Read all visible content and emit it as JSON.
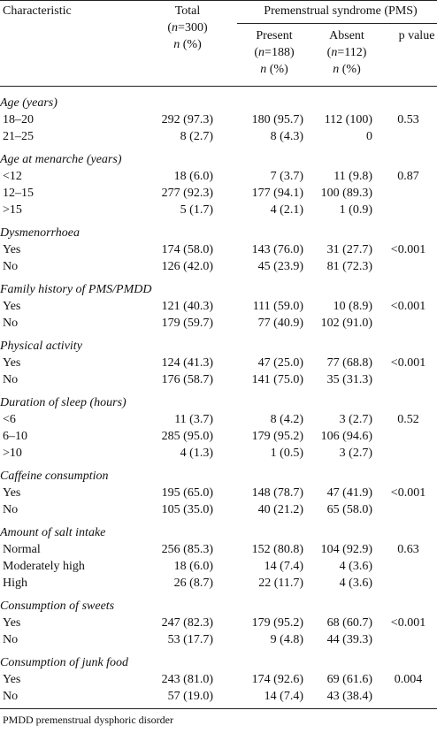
{
  "header": {
    "characteristic": "Characteristic",
    "total": "Total",
    "total_n": "(n=300)",
    "total_unit": "n (%)",
    "group": "Premenstrual syndrome (PMS)",
    "present": "Present",
    "present_n": "(n=188)",
    "present_unit": "n (%)",
    "absent": "Absent",
    "absent_n": "(n=112)",
    "absent_unit": "n (%)",
    "p_value": "p value"
  },
  "sections": [
    {
      "title": "Age (years)",
      "p": "0.53",
      "rows": [
        [
          "18–20",
          "292 (97.3)",
          "180 (95.7)",
          "112 (100)"
        ],
        [
          "21–25",
          "8 (2.7)",
          "8 (4.3)",
          "0"
        ]
      ]
    },
    {
      "title": "Age at menarche (years)",
      "p": "0.87",
      "rows": [
        [
          "<12",
          "18 (6.0)",
          "7 (3.7)",
          "11 (9.8)"
        ],
        [
          "12–15",
          "277 (92.3)",
          "177 (94.1)",
          "100 (89.3)"
        ],
        [
          ">15",
          "5 (1.7)",
          "4 (2.1)",
          "1 (0.9)"
        ]
      ]
    },
    {
      "title": "Dysmenorrhoea",
      "p": "<0.001",
      "rows": [
        [
          "Yes",
          "174 (58.0)",
          "143 (76.0)",
          "31 (27.7)"
        ],
        [
          "No",
          "126 (42.0)",
          "45 (23.9)",
          "81 (72.3)"
        ]
      ]
    },
    {
      "title": "Family history of PMS/PMDD",
      "p": "<0.001",
      "rows": [
        [
          "Yes",
          "121 (40.3)",
          "111 (59.0)",
          "10 (8.9)"
        ],
        [
          "No",
          "179 (59.7)",
          "77 (40.9)",
          "102 (91.0)"
        ]
      ]
    },
    {
      "title": "Physical activity",
      "p": "<0.001",
      "rows": [
        [
          "Yes",
          "124 (41.3)",
          "47 (25.0)",
          "77 (68.8)"
        ],
        [
          "No",
          "176 (58.7)",
          "141 (75.0)",
          "35 (31.3)"
        ]
      ]
    },
    {
      "title": "Duration of sleep (hours)",
      "p": "0.52",
      "rows": [
        [
          "<6",
          "11 (3.7)",
          "8 (4.2)",
          "3 (2.7)"
        ],
        [
          "6–10",
          "285 (95.0)",
          "179 (95.2)",
          "106 (94.6)"
        ],
        [
          ">10",
          "4 (1.3)",
          "1 (0.5)",
          "3 (2.7)"
        ]
      ]
    },
    {
      "title": "Caffeine consumption",
      "p": "<0.001",
      "rows": [
        [
          "Yes",
          "195 (65.0)",
          "148 (78.7)",
          "47 (41.9)"
        ],
        [
          "No",
          "105 (35.0)",
          "40 (21.2)",
          "65 (58.0)"
        ]
      ]
    },
    {
      "title": "Amount of salt intake",
      "p": "0.63",
      "rows": [
        [
          "Normal",
          "256 (85.3)",
          "152 (80.8)",
          "104 (92.9)"
        ],
        [
          "Moderately high",
          "18 (6.0)",
          "14 (7.4)",
          "4 (3.6)"
        ],
        [
          "High",
          "26 (8.7)",
          "22 (11.7)",
          "4 (3.6)"
        ]
      ]
    },
    {
      "title": "Consumption of sweets",
      "p": "<0.001",
      "rows": [
        [
          "Yes",
          "247 (82.3)",
          "179 (95.2)",
          "68 (60.7)"
        ],
        [
          "No",
          "53 (17.7)",
          "9 (4.8)",
          "44 (39.3)"
        ]
      ]
    },
    {
      "title": "Consumption of junk food",
      "p": "0.004",
      "rows": [
        [
          "Yes",
          "243 (81.0)",
          "174 (92.6)",
          "69 (61.6)"
        ],
        [
          "No",
          "57 (19.0)",
          "14 (7.4)",
          "43 (38.4)"
        ]
      ]
    }
  ],
  "footnote": "PMDD premenstrual dysphoric disorder"
}
